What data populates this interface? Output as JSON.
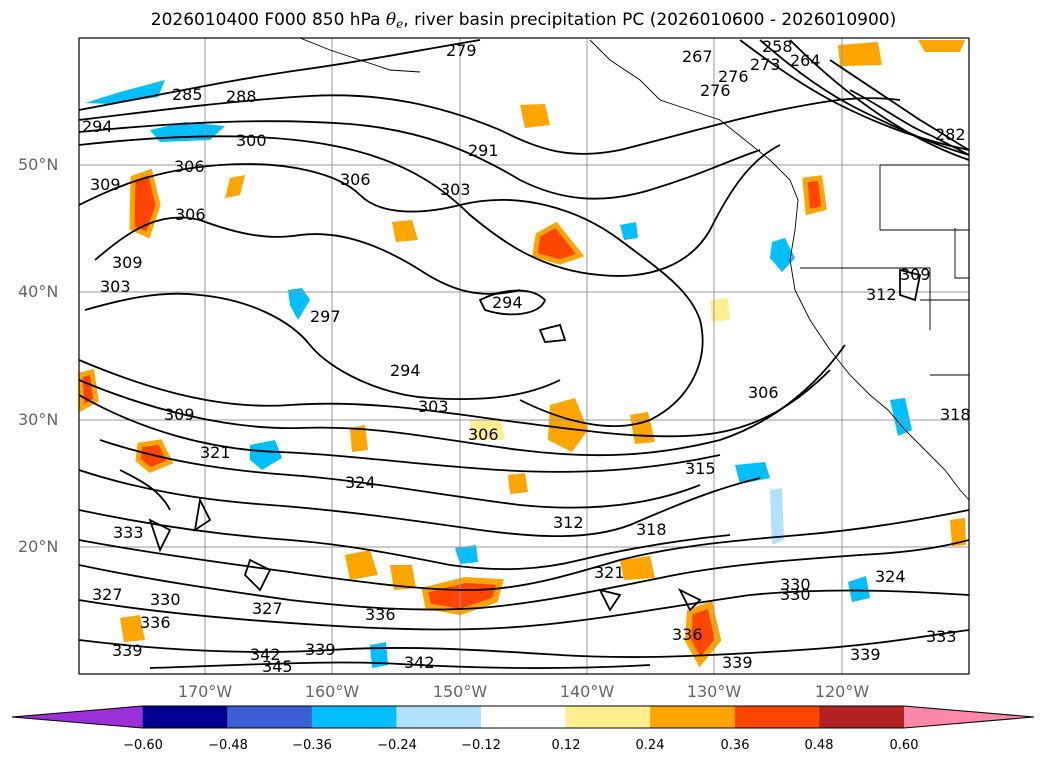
{
  "title": {
    "prefix": "2026010400 F000 850 hPa ",
    "theta": "θ",
    "theta_sub": "e",
    "suffix": ", river basin precipitation PC (2026010600 - 2026010900)"
  },
  "lat_labels": [
    "50°N",
    "40°N",
    "30°N",
    "20°N"
  ],
  "lon_labels": [
    "170°W",
    "160°W",
    "150°W",
    "140°W",
    "130°W",
    "120°W"
  ],
  "contour_labels": [
    "279",
    "285",
    "288",
    "294",
    "300",
    "306",
    "309",
    "306",
    "309",
    "303",
    "297",
    "294",
    "294",
    "291",
    "306",
    "303",
    "303",
    "306",
    "309",
    "321",
    "324",
    "333",
    "327",
    "330",
    "336",
    "327",
    "330",
    "336",
    "339",
    "342",
    "345",
    "339",
    "342",
    "312",
    "315",
    "318",
    "321",
    "336",
    "339",
    "339",
    "330",
    "324",
    "333",
    "306",
    "309",
    "312",
    "318",
    "267",
    "273",
    "276",
    "276",
    "282",
    "258",
    "264"
  ],
  "colorbar": {
    "colors": [
      "#9b30d9",
      "#000090",
      "#3c5fd4",
      "#00bfff",
      "#b0e2ff",
      "#ffffff",
      "#ffee90",
      "#ffa500",
      "#ff4500",
      "#b22222",
      "#ff88aa"
    ],
    "ticks": [
      "−0.60",
      "−0.48",
      "−0.36",
      "−0.24",
      "−0.12",
      "0.12",
      "0.24",
      "0.36",
      "0.48",
      "0.60"
    ]
  }
}
